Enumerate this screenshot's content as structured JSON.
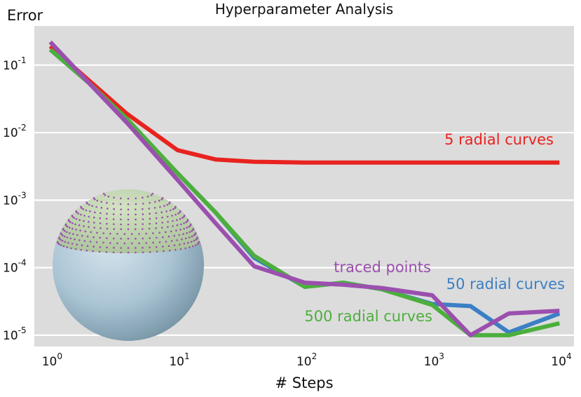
{
  "chart_data": {
    "type": "line",
    "title": "Hyperparameter Analysis",
    "xlabel": "# Steps",
    "ylabel": "Error",
    "x_scale": "log",
    "y_scale": "log",
    "xlim": [
      0.75,
      13000
    ],
    "ylim": [
      6.8e-06,
      0.38
    ],
    "grid": "horizontal",
    "background": "#dcdcdc",
    "x_ticks": [
      {
        "value": 1,
        "base": "10",
        "exp": "0"
      },
      {
        "value": 10,
        "base": "10",
        "exp": "1"
      },
      {
        "value": 100,
        "base": "10",
        "exp": "2"
      },
      {
        "value": 1000,
        "base": "10",
        "exp": "3"
      },
      {
        "value": 10000,
        "base": "10",
        "exp": "4"
      }
    ],
    "y_ticks": [
      {
        "value": 0.1,
        "base": "10",
        "exp": "-1"
      },
      {
        "value": 0.01,
        "base": "10",
        "exp": "-2"
      },
      {
        "value": 0.001,
        "base": "10",
        "exp": "-3"
      },
      {
        "value": 0.0001,
        "base": "10",
        "exp": "-4"
      },
      {
        "value": 1e-05,
        "base": "10",
        "exp": "-5"
      }
    ],
    "series": [
      {
        "name": "5 radial curves",
        "color": "#e8231f",
        "x": [
          1,
          2,
          4,
          10,
          20,
          40,
          100,
          200,
          400,
          1000,
          2000,
          4000,
          10000
        ],
        "y": [
          0.19,
          0.06,
          0.019,
          0.0055,
          0.004,
          0.0037,
          0.0036,
          0.0036,
          0.0036,
          0.0036,
          0.0036,
          0.0036,
          0.0036
        ]
      },
      {
        "name": "50 radial curves",
        "color": "#3b7fc4",
        "x": [
          1,
          2,
          4,
          10,
          20,
          40,
          100,
          200,
          400,
          1000,
          2000,
          4000,
          10000
        ],
        "y": [
          0.17,
          0.055,
          0.015,
          0.0025,
          0.00065,
          0.00014,
          5.2e-05,
          6e-05,
          4.8e-05,
          2.9e-05,
          2.7e-05,
          1.1e-05,
          2.1e-05
        ]
      },
      {
        "name": "500 radial curves",
        "color": "#4caf3c",
        "x": [
          1,
          2,
          4,
          10,
          20,
          40,
          100,
          200,
          400,
          1000,
          2000,
          4000,
          10000
        ],
        "y": [
          0.17,
          0.055,
          0.016,
          0.0025,
          0.00065,
          0.00015,
          5.2e-05,
          6e-05,
          4.8e-05,
          2.8e-05,
          1e-05,
          1e-05,
          1.5e-05
        ]
      },
      {
        "name": "traced points",
        "color": "#9b4fae",
        "x": [
          1,
          2,
          4,
          10,
          20,
          40,
          100,
          200,
          400,
          1000,
          2000,
          4000,
          10000
        ],
        "y": [
          0.22,
          0.055,
          0.014,
          0.002,
          0.00045,
          0.000105,
          6e-05,
          5.6e-05,
          5e-05,
          3.9e-05,
          1e-05,
          2.1e-05,
          2.3e-05
        ]
      }
    ],
    "annotations": [
      {
        "text": "5 radial curves",
        "series": 0,
        "color": "#e8231f"
      },
      {
        "text": "traced points",
        "series": 3,
        "color": "#9b4fae"
      },
      {
        "text": "50 radial curves",
        "series": 1,
        "color": "#3b7fc4"
      },
      {
        "text": "500 radial curves",
        "series": 2,
        "color": "#4caf3c"
      }
    ],
    "inset": {
      "description_icon": "sphere-icon",
      "sphere_color": "#afc8d8",
      "cap_color": "#b9cfa8",
      "dot_color": "#9b4fae"
    }
  }
}
